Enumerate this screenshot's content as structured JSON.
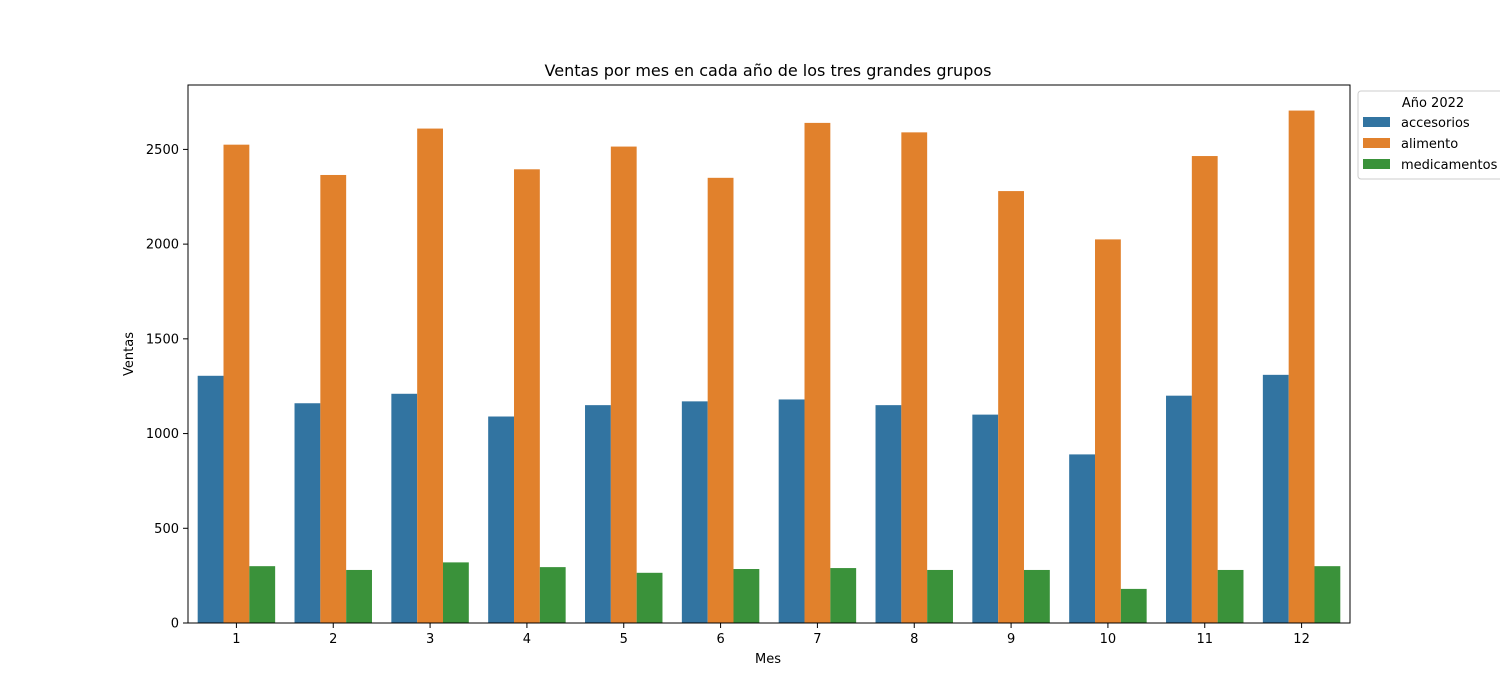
{
  "chart_data": {
    "type": "bar",
    "title": "Ventas por mes en cada año de los tres grandes grupos",
    "xlabel": "Mes",
    "ylabel": "Ventas",
    "ylim": [
      0,
      2840
    ],
    "yticks": [
      0,
      500,
      1000,
      1500,
      2000,
      2500
    ],
    "categories": [
      "1",
      "2",
      "3",
      "4",
      "5",
      "6",
      "7",
      "8",
      "9",
      "10",
      "11",
      "12"
    ],
    "legend": {
      "title": "Año 2022",
      "placement": "upper-right-outside"
    },
    "grid": false,
    "series": [
      {
        "name": "accesorios",
        "color": "#3274a1",
        "values": [
          1305,
          1160,
          1210,
          1090,
          1150,
          1170,
          1180,
          1150,
          1100,
          890,
          1200,
          1310
        ]
      },
      {
        "name": "alimento",
        "color": "#e1812c",
        "values": [
          2525,
          2365,
          2610,
          2395,
          2515,
          2350,
          2640,
          2590,
          2280,
          2025,
          2465,
          2705
        ]
      },
      {
        "name": "medicamentos",
        "color": "#3a923a",
        "values": [
          300,
          280,
          320,
          295,
          265,
          285,
          290,
          280,
          280,
          180,
          280,
          300
        ]
      }
    ]
  }
}
